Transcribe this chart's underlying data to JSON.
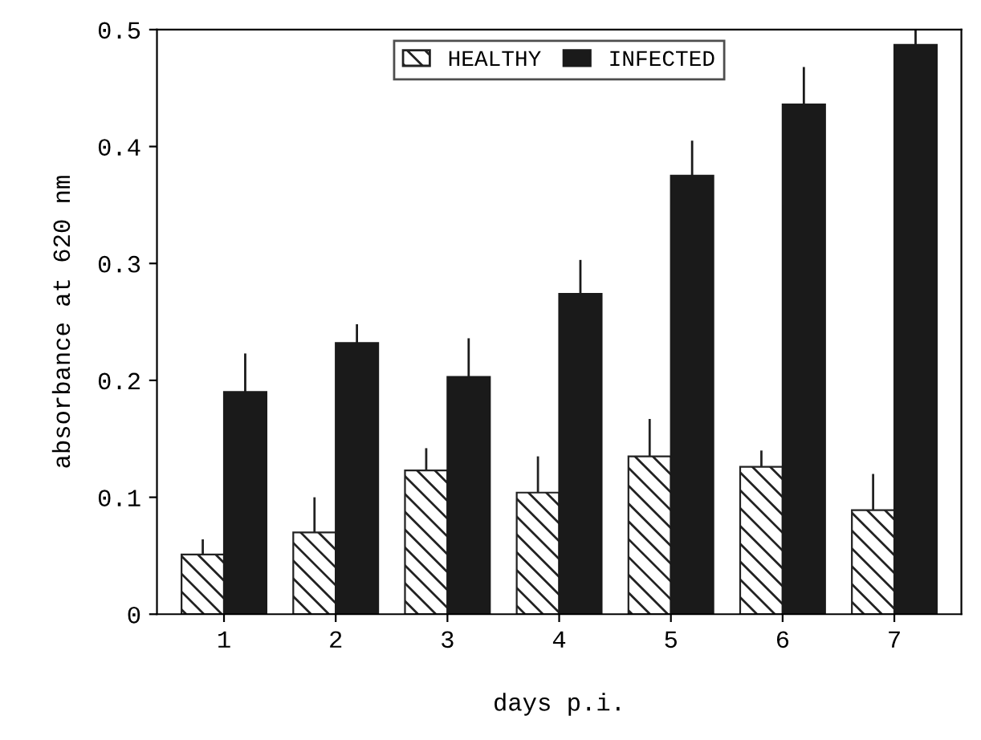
{
  "chart_data": {
    "type": "bar",
    "xlabel": "days p.i.",
    "ylabel": "absorbance at 620 nm",
    "categories": [
      "1",
      "2",
      "3",
      "4",
      "5",
      "6",
      "7"
    ],
    "series": [
      {
        "name": "HEALTHY",
        "color": "#222222",
        "values": [
          0.051,
          0.07,
          0.123,
          0.104,
          0.135,
          0.126,
          0.089
        ],
        "errors": [
          [
            0.051,
            0.064
          ],
          [
            0.07,
            0.1
          ],
          [
            0.123,
            0.142
          ],
          [
            0.104,
            0.135
          ],
          [
            0.135,
            0.167
          ],
          [
            0.126,
            0.14
          ],
          [
            0.089,
            0.12
          ]
        ]
      },
      {
        "name": "INFECTED",
        "color": "#1a1a1a",
        "values": [
          0.19,
          0.232,
          0.203,
          0.274,
          0.375,
          0.436,
          0.487
        ],
        "errors": [
          [
            0.19,
            0.223
          ],
          [
            0.232,
            0.248
          ],
          [
            0.203,
            0.236
          ],
          [
            0.274,
            0.303
          ],
          [
            0.375,
            0.405
          ],
          [
            0.436,
            0.468
          ],
          [
            0.487,
            0.5
          ]
        ]
      }
    ],
    "ylim": [
      0,
      0.5
    ],
    "yticks": [
      0,
      0.1,
      0.2,
      0.3,
      0.4,
      0.5
    ],
    "legend": "top",
    "grid": false
  }
}
